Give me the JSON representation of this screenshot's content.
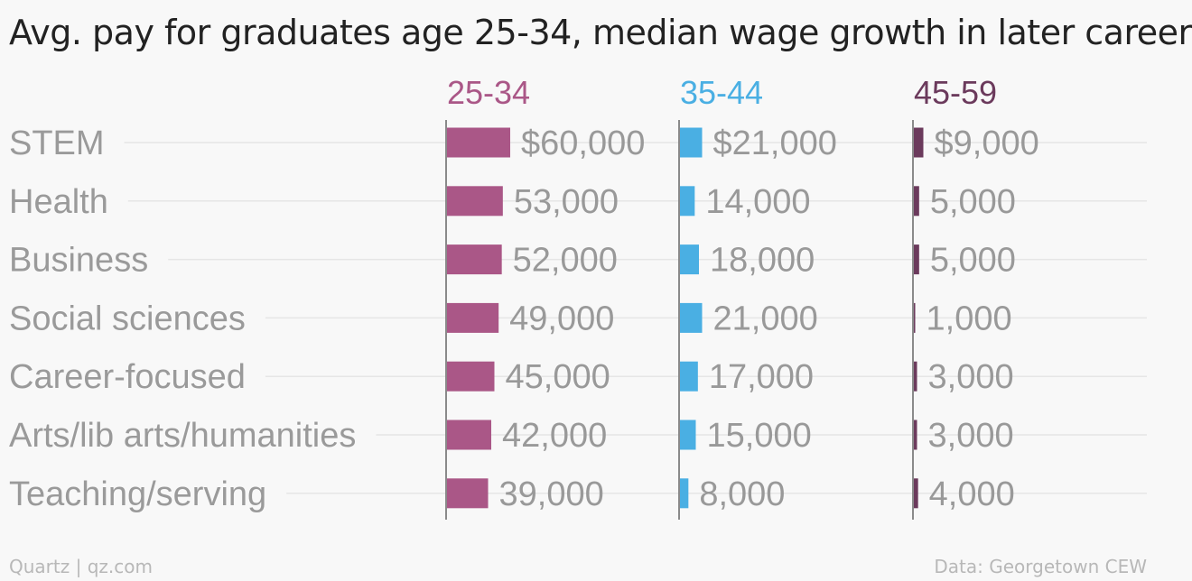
{
  "title": "Avg. pay for graduates age 25-34, median wage growth in later career",
  "chart_data": {
    "type": "bar",
    "categories": [
      "STEM",
      "Health",
      "Business",
      "Social sciences",
      "Career-focused",
      "Arts/lib arts/humanities",
      "Teaching/serving"
    ],
    "series": [
      {
        "name": "25-34",
        "color": "#aa5787",
        "values": [
          60000,
          53000,
          52000,
          49000,
          45000,
          42000,
          39000
        ],
        "labels": [
          "$60,000",
          "53,000",
          "52,000",
          "49,000",
          "45,000",
          "42,000",
          "39,000"
        ]
      },
      {
        "name": "35-44",
        "color": "#4aafe3",
        "values": [
          21000,
          14000,
          18000,
          21000,
          17000,
          15000,
          8000
        ],
        "labels": [
          "$21,000",
          "14,000",
          "18,000",
          "21,000",
          "17,000",
          "15,000",
          "8,000"
        ]
      },
      {
        "name": "45-59",
        "color": "#6b3a5c",
        "values": [
          9000,
          5000,
          5000,
          1000,
          3000,
          3000,
          4000
        ],
        "labels": [
          "$9,000",
          "5,000",
          "5,000",
          "1,000",
          "3,000",
          "3,000",
          "4,000"
        ]
      }
    ],
    "category_label_color": "#9a9a9a",
    "value_label_color": "#999999",
    "gridlines": true
  },
  "footer": {
    "source_left": "Quartz | qz.com",
    "source_right": "Data: Georgetown CEW"
  }
}
